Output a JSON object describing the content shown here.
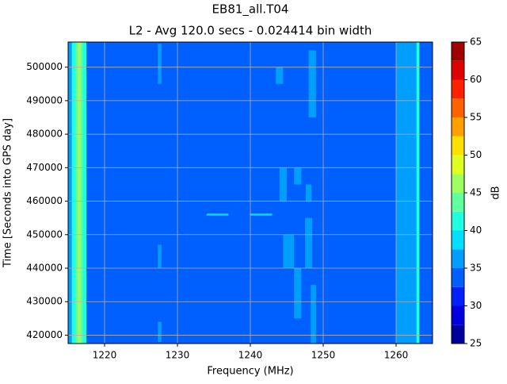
{
  "chart_data": {
    "type": "heatmap",
    "title": "EB81_all.T04",
    "subtitle": "L2 - Avg 120.0 secs - 0.024414 bin width",
    "xlabel": "Frequency (MHz)",
    "ylabel": "Time [Seconds into GPS day]",
    "colorbar_label": "dB",
    "xlim": [
      1215,
      1265
    ],
    "ylim": [
      417500,
      507500
    ],
    "xticks": [
      1220,
      1230,
      1240,
      1250,
      1260
    ],
    "yticks": [
      420000,
      430000,
      440000,
      450000,
      460000,
      470000,
      480000,
      490000,
      500000
    ],
    "clim": [
      25,
      65
    ],
    "cticks": [
      25,
      30,
      35,
      40,
      45,
      50,
      55,
      60,
      65
    ],
    "levels": [
      25,
      27.5,
      30,
      32.5,
      35,
      37.5,
      40,
      42.5,
      45,
      47.5,
      50,
      52.5,
      55,
      57.5,
      60,
      62.5,
      65
    ],
    "colors": [
      "#00009f",
      "#0000df",
      "#0020ff",
      "#0060ff",
      "#009fff",
      "#00dfff",
      "#20ffdf",
      "#60ff9f",
      "#9fff60",
      "#dfff20",
      "#ffdf00",
      "#ff9f00",
      "#ff6000",
      "#ff2000",
      "#df0000",
      "#9f0000"
    ],
    "grid": true,
    "cells": [
      {
        "x": [
          1215,
          1265
        ],
        "y": [
          417500,
          507500
        ],
        "value": 33
      },
      {
        "x": [
          1215,
          1215.5
        ],
        "y": [
          417500,
          507500
        ],
        "value": 37
      },
      {
        "x": [
          1215.5,
          1217.5
        ],
        "y": [
          417500,
          507500
        ],
        "value": 41
      },
      {
        "x": [
          1216,
          1217
        ],
        "y": [
          417500,
          507500
        ],
        "value": 44
      },
      {
        "x": [
          1216.3,
          1216.7
        ],
        "y": [
          417500,
          507500
        ],
        "value": 46
      },
      {
        "x": [
          1227.3,
          1227.8
        ],
        "y": [
          495000,
          507000
        ],
        "value": 37
      },
      {
        "x": [
          1227.3,
          1227.8
        ],
        "y": [
          440000,
          447000
        ],
        "value": 37
      },
      {
        "x": [
          1227.3,
          1227.8
        ],
        "y": [
          418000,
          424000
        ],
        "value": 37
      },
      {
        "x": [
          1260,
          1263
        ],
        "y": [
          417500,
          507500
        ],
        "value": 37
      },
      {
        "x": [
          1262.8,
          1263.2
        ],
        "y": [
          417500,
          507500
        ],
        "value": 42
      },
      {
        "x": [
          1248,
          1249
        ],
        "y": [
          485000,
          505000
        ],
        "value": 37
      },
      {
        "x": [
          1247.5,
          1248.5
        ],
        "y": [
          440000,
          455000
        ],
        "value": 37
      },
      {
        "x": [
          1248.3,
          1249
        ],
        "y": [
          417500,
          435000
        ],
        "value": 37
      },
      {
        "x": [
          1244.5,
          1246
        ],
        "y": [
          440000,
          450000
        ],
        "value": 37
      },
      {
        "x": [
          1246,
          1247
        ],
        "y": [
          425000,
          440000
        ],
        "value": 36
      },
      {
        "x": [
          1244,
          1245
        ],
        "y": [
          460000,
          470000
        ],
        "value": 37
      },
      {
        "x": [
          1246,
          1247
        ],
        "y": [
          465000,
          470000
        ],
        "value": 36
      },
      {
        "x": [
          1247.6,
          1248.4
        ],
        "y": [
          460000,
          465000
        ],
        "value": 37
      },
      {
        "x": [
          1243.5,
          1244.5
        ],
        "y": [
          495000,
          500000
        ],
        "value": 36
      },
      {
        "x": [
          1234,
          1237
        ],
        "y": [
          455700,
          456300
        ],
        "value": 38
      },
      {
        "x": [
          1240,
          1243
        ],
        "y": [
          455700,
          456300
        ],
        "value": 38
      }
    ]
  }
}
